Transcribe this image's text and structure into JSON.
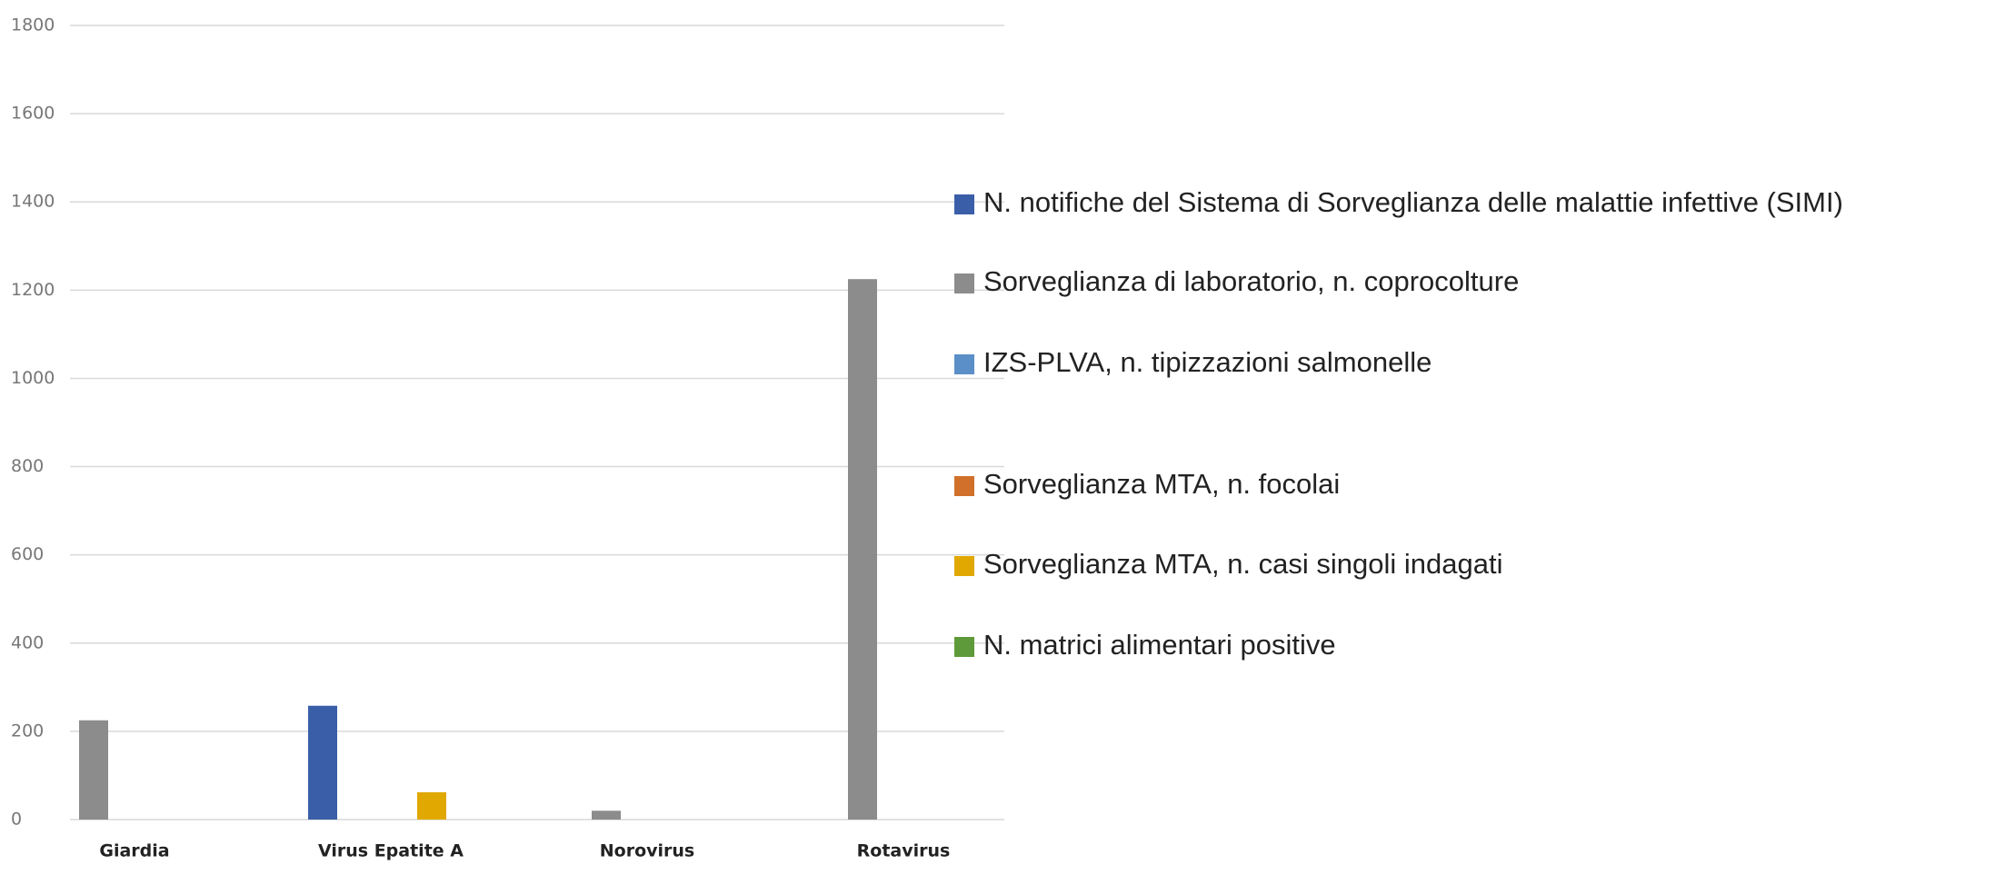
{
  "chart_data": {
    "type": "bar",
    "categories": [
      "Giardia",
      "Virus Epatite A",
      "Norovirus",
      "Rotavirus"
    ],
    "series": [
      {
        "name": "N. notifiche del Sistema di Sorveglianza delle malattie infettive (SIMI)",
        "color": "#3a5fa8",
        "values": [
          0,
          258,
          0,
          0
        ]
      },
      {
        "name": "Sorveglianza di laboratorio, n. coprocolture",
        "color": "#8c8c8c",
        "values": [
          225,
          0,
          20,
          1225
        ]
      },
      {
        "name": "IZS-PLVA, n. tipizzazioni salmonelle",
        "color": "#5b8fc7",
        "values": [
          0,
          0,
          0,
          0
        ]
      },
      {
        "name": "Sorveglianza MTA, n. focolai",
        "color": "#d0702a",
        "values": [
          0,
          0,
          0,
          0
        ]
      },
      {
        "name": "Sorveglianza MTA, n. casi singoli indagati",
        "color": "#e0a800",
        "values": [
          0,
          62,
          0,
          0
        ]
      },
      {
        "name": "N. matrici alimentari positive",
        "color": "#5f9a3a",
        "values": [
          0,
          0,
          0,
          0
        ]
      }
    ],
    "ylim": [
      0,
      1800
    ],
    "yticks": [
      0,
      200,
      400,
      600,
      800,
      1000,
      1200,
      1400,
      1600,
      1800
    ],
    "grid": true
  }
}
